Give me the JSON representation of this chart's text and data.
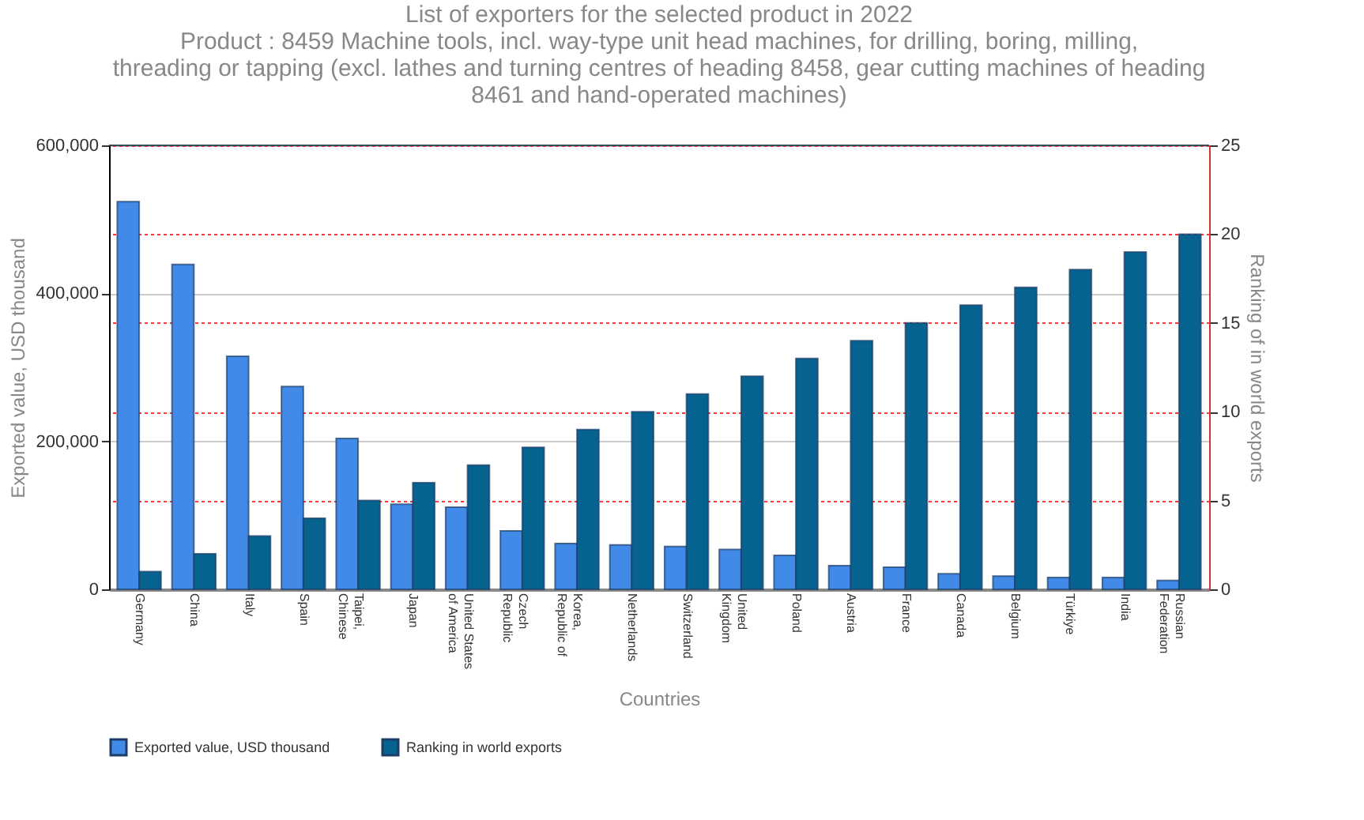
{
  "chart_data": {
    "type": "bar",
    "title": "List of exporters for the selected product in 2022",
    "subtitle": "Product : 8459 Machine tools, incl. way-type unit head machines, for drilling, boring, milling, threading or tapping (excl. lathes and turning centres of heading 8458, gear cutting machines of heading 8461 and hand-operated machines)",
    "xlabel": "Countries",
    "ylabel": "Exported value, USD thousand",
    "y2label": "Ranking of in world exports",
    "categories": [
      "Germany",
      "China",
      "Italy",
      "Spain",
      "Taipei, Chinese",
      "Japan",
      "United States of America",
      "Czech Republic",
      "Korea, Republic of",
      "Netherlands",
      "Switzerland",
      "United Kingdom",
      "Poland",
      "Austria",
      "France",
      "Canada",
      "Belgium",
      "Türkiye",
      "India",
      "Russian Federation"
    ],
    "series": [
      {
        "name": "Exported value, USD thousand",
        "color": "#428ae8",
        "values": [
          524000,
          439000,
          315000,
          274000,
          204000,
          115000,
          111000,
          79000,
          62000,
          60000,
          58000,
          54000,
          46000,
          32000,
          30000,
          21000,
          18000,
          16000,
          16000,
          12000
        ]
      },
      {
        "name": "Ranking in world exports",
        "color": "#06628f",
        "axis": "y2",
        "values": [
          1,
          2,
          3,
          4,
          5,
          6,
          7,
          8,
          9,
          10,
          11,
          12,
          13,
          14,
          15,
          16,
          17,
          18,
          19,
          20
        ]
      }
    ],
    "ylim": [
      0,
      600000
    ],
    "yticks": [
      {
        "value": 0,
        "label": "0"
      },
      {
        "value": 200000,
        "label": "200,000"
      },
      {
        "value": 400000,
        "label": "400,000"
      },
      {
        "value": 600000,
        "label": "600,000"
      }
    ],
    "y2lim": [
      0,
      25
    ],
    "y2ticks": [
      0,
      5,
      10,
      15,
      20,
      25
    ],
    "grid": true,
    "legend": "bottom"
  }
}
